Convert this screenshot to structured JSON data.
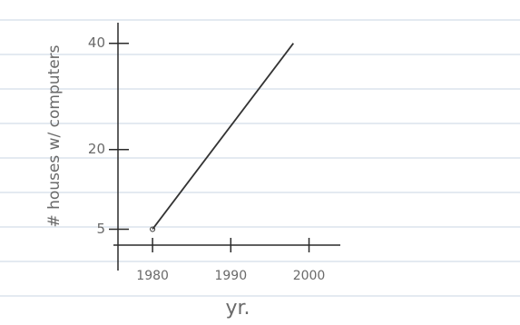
{
  "chart_data": {
    "type": "line",
    "x_label": "yr.",
    "y_label": "# houses w/ computers",
    "x": [
      1980,
      1998
    ],
    "series": [
      {
        "name": null,
        "color": "#333333",
        "values": [
          5,
          40
        ]
      }
    ],
    "xlim": [
      1975,
      2004
    ],
    "xticks": [
      1980,
      1990,
      2000
    ],
    "ylim": [
      2,
      42
    ],
    "yticks": [
      5,
      20,
      40
    ],
    "axis_color": "#2a2a2a"
  }
}
